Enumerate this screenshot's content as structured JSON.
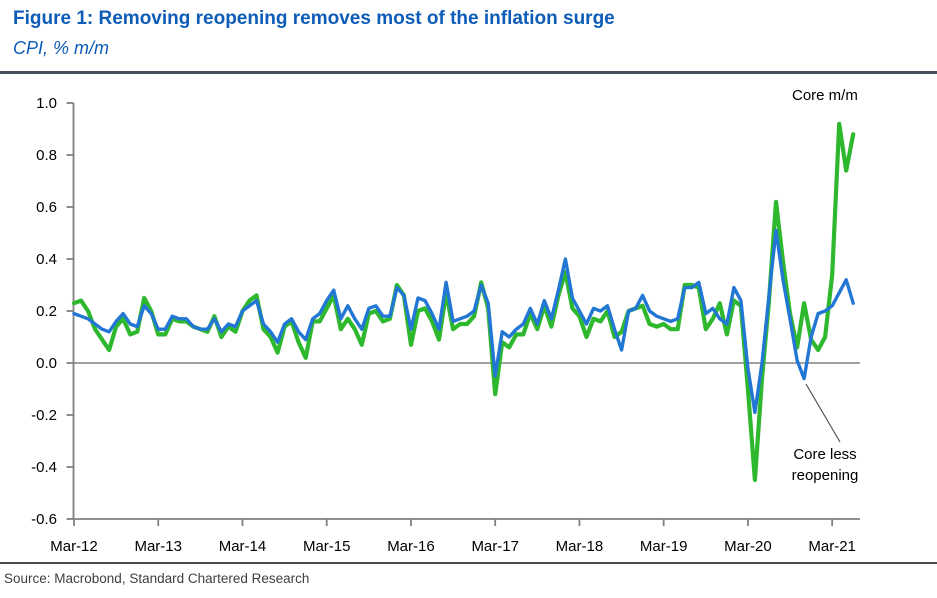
{
  "header": {
    "title": "Figure 1: Removing reopening removes most of the inflation surge",
    "subtitle": "CPI, % m/m"
  },
  "source": "Source: Macrobond, Standard Chartered Research",
  "annotations": {
    "core_label": "Core m/m",
    "core_less_label": "Core less reopening"
  },
  "colors": {
    "title_blue": "#0e5cb8",
    "core_green": "#2eb82e",
    "core_less_blue": "#2377d4",
    "axis_gray": "#808080",
    "header_rule": "#46505a",
    "source_rule": "#4d4d4d",
    "source_text": "#404040",
    "annotation_text": "#000000"
  },
  "chart_data": {
    "type": "line",
    "title": "Figure 1: Removing reopening removes most of the inflation surge",
    "ylabel": "CPI, % m/m",
    "x_unit": "monthly",
    "x_start": "Mar-2012",
    "x_end": "Jun-2021",
    "ylim": [
      -0.6,
      1.0
    ],
    "grid": false,
    "zero_line": true,
    "legend_position": "annotated-on-chart",
    "x_tick_labels": [
      "Mar-12",
      "Mar-13",
      "Mar-14",
      "Mar-15",
      "Mar-16",
      "Mar-17",
      "Mar-18",
      "Mar-19",
      "Mar-20",
      "Mar-21"
    ],
    "y_tick_labels": [
      "1.0",
      "0.8",
      "0.6",
      "0.4",
      "0.2",
      "0.0",
      "-0.2",
      "-0.4",
      "-0.6"
    ],
    "y_ticks": [
      1.0,
      0.8,
      0.6,
      0.4,
      0.2,
      0.0,
      -0.2,
      -0.4,
      -0.6
    ],
    "series": [
      {
        "name": "Core m/m",
        "color": "#2eb82e",
        "values": [
          0.23,
          0.24,
          0.2,
          0.13,
          0.09,
          0.05,
          0.14,
          0.17,
          0.11,
          0.12,
          0.25,
          0.2,
          0.11,
          0.11,
          0.17,
          0.16,
          0.16,
          0.14,
          0.13,
          0.12,
          0.18,
          0.1,
          0.14,
          0.12,
          0.2,
          0.24,
          0.26,
          0.13,
          0.1,
          0.04,
          0.14,
          0.16,
          0.08,
          0.02,
          0.16,
          0.16,
          0.21,
          0.26,
          0.13,
          0.17,
          0.13,
          0.07,
          0.19,
          0.2,
          0.16,
          0.17,
          0.3,
          0.26,
          0.07,
          0.2,
          0.21,
          0.16,
          0.09,
          0.27,
          0.13,
          0.15,
          0.15,
          0.18,
          0.31,
          0.21,
          -0.12,
          0.08,
          0.06,
          0.11,
          0.11,
          0.19,
          0.13,
          0.22,
          0.14,
          0.26,
          0.35,
          0.21,
          0.18,
          0.1,
          0.17,
          0.16,
          0.2,
          0.1,
          0.12,
          0.2,
          0.21,
          0.22,
          0.15,
          0.14,
          0.15,
          0.13,
          0.13,
          0.3,
          0.3,
          0.29,
          0.13,
          0.17,
          0.23,
          0.11,
          0.24,
          0.22,
          -0.1,
          -0.45,
          -0.06,
          0.24,
          0.62,
          0.39,
          0.19,
          0.06,
          0.23,
          0.09,
          0.05,
          0.1,
          0.34,
          0.92,
          0.74,
          0.88
        ]
      },
      {
        "name": "Core less reopening",
        "color": "#2377d4",
        "values": [
          0.19,
          0.18,
          0.17,
          0.15,
          0.13,
          0.12,
          0.16,
          0.19,
          0.15,
          0.14,
          0.22,
          0.19,
          0.13,
          0.13,
          0.18,
          0.17,
          0.17,
          0.14,
          0.13,
          0.13,
          0.17,
          0.12,
          0.15,
          0.14,
          0.2,
          0.22,
          0.24,
          0.15,
          0.12,
          0.08,
          0.15,
          0.17,
          0.12,
          0.09,
          0.17,
          0.19,
          0.24,
          0.28,
          0.17,
          0.22,
          0.17,
          0.13,
          0.21,
          0.22,
          0.18,
          0.18,
          0.29,
          0.26,
          0.13,
          0.25,
          0.24,
          0.19,
          0.13,
          0.31,
          0.16,
          0.17,
          0.18,
          0.2,
          0.3,
          0.23,
          -0.05,
          0.12,
          0.1,
          0.13,
          0.15,
          0.21,
          0.15,
          0.24,
          0.17,
          0.28,
          0.4,
          0.25,
          0.2,
          0.15,
          0.21,
          0.2,
          0.22,
          0.13,
          0.05,
          0.2,
          0.21,
          0.26,
          0.2,
          0.18,
          0.17,
          0.16,
          0.17,
          0.29,
          0.29,
          0.31,
          0.19,
          0.21,
          0.17,
          0.15,
          0.29,
          0.24,
          -0.02,
          -0.19,
          0.0,
          0.26,
          0.51,
          0.32,
          0.17,
          0.01,
          -0.06,
          0.1,
          0.19,
          0.2,
          0.22,
          0.27,
          0.32,
          0.23
        ]
      }
    ]
  }
}
